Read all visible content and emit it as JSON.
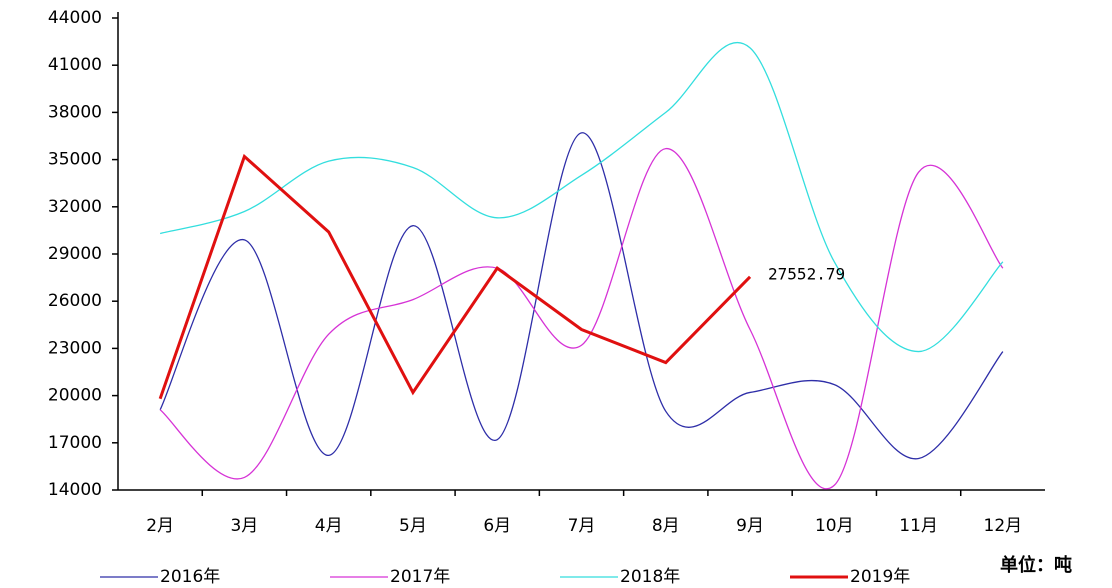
{
  "chart_data": {
    "type": "line",
    "categories": [
      "2月",
      "3月",
      "4月",
      "5月",
      "6月",
      "7月",
      "8月",
      "9月",
      "10月",
      "11月",
      "12月"
    ],
    "series": [
      {
        "name": "2016年",
        "color": "#2e2ea8",
        "smooth": true,
        "values": [
          19100,
          29900,
          16200,
          30800,
          17200,
          36700,
          19000,
          20200,
          20700,
          16000,
          22800
        ]
      },
      {
        "name": "2017年",
        "color": "#d633d6",
        "smooth": true,
        "values": [
          19100,
          14800,
          23900,
          26100,
          28100,
          23200,
          35700,
          24200,
          14300,
          34200,
          28100
        ]
      },
      {
        "name": "2018年",
        "color": "#33dede",
        "smooth": true,
        "values": [
          30300,
          31700,
          34900,
          34500,
          31300,
          34000,
          38000,
          42100,
          28500,
          22800,
          28500
        ]
      },
      {
        "name": "2019年",
        "color": "#e01010",
        "smooth": false,
        "width": 3,
        "values": [
          19800,
          35200,
          30400,
          20200,
          28100,
          24200,
          22100,
          27552.79,
          null,
          null,
          null
        ]
      }
    ],
    "data_label": {
      "series": 3,
      "index": 7
    },
    "unit": "单位：吨",
    "ylim": [
      14000,
      44000
    ],
    "yticks": [
      14000,
      17000,
      20000,
      23000,
      26000,
      29000,
      32000,
      35000,
      38000,
      41000,
      44000
    ],
    "grid": false
  }
}
